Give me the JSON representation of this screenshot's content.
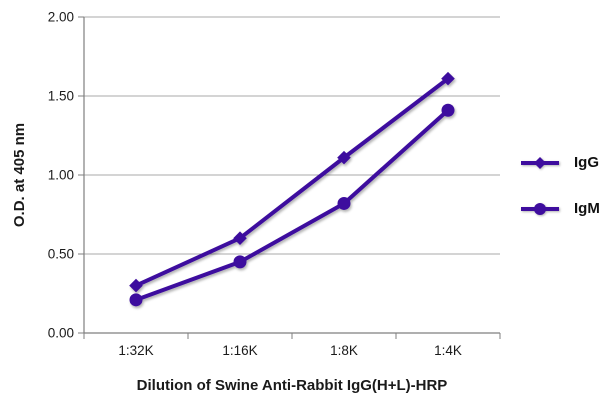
{
  "chart_data": {
    "type": "line",
    "xlabel": "Dilution of Swine Anti-Rabbit IgG(H+L)-HRP",
    "ylabel": "O.D. at 405 nm",
    "categories": [
      "1:32K",
      "1:16K",
      "1:8K",
      "1:4K"
    ],
    "series": [
      {
        "name": "IgG",
        "marker": "diamond",
        "color": "#3e0d9e",
        "values": [
          0.3,
          0.6,
          1.11,
          1.61
        ]
      },
      {
        "name": "IgM",
        "marker": "circle",
        "color": "#3e0d9e",
        "values": [
          0.21,
          0.45,
          0.82,
          1.41
        ]
      }
    ],
    "ylim": [
      0,
      2
    ],
    "y_ticks": [
      "0.00",
      "0.50",
      "1.00",
      "1.50",
      "2.00"
    ],
    "grid": "horizontal",
    "legend_position": "right",
    "colors": {
      "line": "#3e0d9e",
      "grid": "#a9a9a9",
      "axis": "#7f7f7f",
      "text": "#1a1a1a"
    }
  }
}
